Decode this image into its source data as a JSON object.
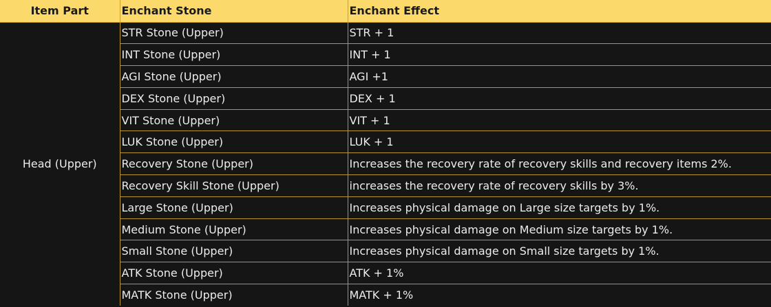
{
  "headers": {
    "part": "Item Part",
    "stone": "Enchant Stone",
    "effect": "Enchant Effect"
  },
  "item_part": "Head (Upper)",
  "rows": [
    {
      "stone": "STR Stone (Upper)",
      "effect": "STR + 1"
    },
    {
      "stone": "INT Stone (Upper)",
      "effect": "INT + 1"
    },
    {
      "stone": "AGI Stone (Upper)",
      "effect": "AGI +1"
    },
    {
      "stone": "DEX Stone (Upper)",
      "effect": "DEX + 1"
    },
    {
      "stone": "VIT Stone (Upper)",
      "effect": "VIT + 1"
    },
    {
      "stone": "LUK Stone (Upper)",
      "effect": "LUK + 1"
    },
    {
      "stone": "Recovery Stone (Upper)",
      "effect": "Increases the recovery rate of recovery skills and recovery items 2%."
    },
    {
      "stone": "Recovery Skill Stone (Upper)",
      "effect": "increases the recovery rate of recovery skills by 3%."
    },
    {
      "stone": "Large Stone (Upper)",
      "effect": "Increases physical damage on Large size targets by 1%."
    },
    {
      "stone": "Medium Stone (Upper)",
      "effect": "Increases physical damage on Medium size targets by 1%."
    },
    {
      "stone": "Small Stone (Upper)",
      "effect": "Increases physical damage on Small size targets by 1%."
    },
    {
      "stone": "ATK Stone (Upper)",
      "effect": "ATK + 1%"
    },
    {
      "stone": "MATK Stone (Upper)",
      "effect": "MATK + 1%"
    }
  ],
  "colors": {
    "header_background": "#fcd96b",
    "body_background": "#151515",
    "border": "#b8962a",
    "text": "#ececec"
  }
}
